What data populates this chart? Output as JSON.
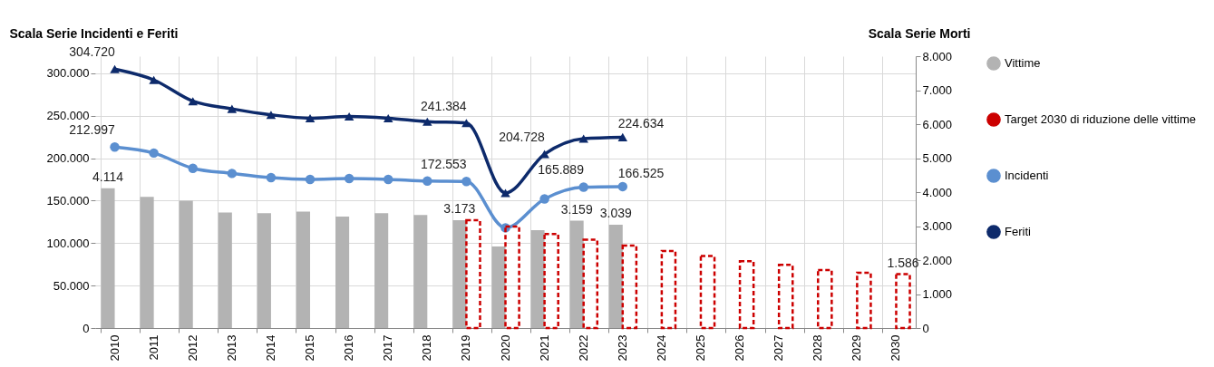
{
  "chart_data": {
    "type": "line",
    "ylabel": "Scala Serie Incidenti e Feriti",
    "y2label": "Scala Serie Morti",
    "categories": [
      "2010",
      "2011",
      "2012",
      "2013",
      "2014",
      "2015",
      "2016",
      "2017",
      "2018",
      "2019",
      "2020",
      "2021",
      "2022",
      "2023",
      "2024",
      "2025",
      "2026",
      "2027",
      "2028",
      "2029",
      "2030"
    ],
    "ylim": [
      0,
      320000
    ],
    "yticks": [
      {
        "value": 0,
        "label": "0"
      },
      {
        "value": 50000,
        "label": "50.000"
      },
      {
        "value": 100000,
        "label": "100.000"
      },
      {
        "value": 150000,
        "label": "150.000"
      },
      {
        "value": 200000,
        "label": "200.000"
      },
      {
        "value": 250000,
        "label": "250.000"
      },
      {
        "value": 300000,
        "label": "300.000"
      }
    ],
    "y2lim": [
      0,
      8000
    ],
    "y2ticks": [
      {
        "value": 0,
        "label": "0"
      },
      {
        "value": 1000,
        "label": "1.000"
      },
      {
        "value": 2000,
        "label": "2.000"
      },
      {
        "value": 3000,
        "label": "3.000"
      },
      {
        "value": 4000,
        "label": "4.000"
      },
      {
        "value": 5000,
        "label": "5.000"
      },
      {
        "value": 6000,
        "label": "6.000"
      },
      {
        "value": 7000,
        "label": "7.000"
      },
      {
        "value": 8000,
        "label": "8.000"
      }
    ],
    "grid": true,
    "legend": "right",
    "series": [
      {
        "name": "Vittime",
        "type": "bar",
        "axis": "y2",
        "color": "#b3b3b3",
        "values": [
          4114,
          3860,
          3750,
          3400,
          3380,
          3430,
          3280,
          3380,
          3330,
          3173,
          2400,
          2880,
          3159,
          3039,
          null,
          null,
          null,
          null,
          null,
          null,
          null
        ],
        "value_labels": [
          "4.114",
          null,
          null,
          null,
          null,
          null,
          null,
          null,
          null,
          "3.173",
          null,
          null,
          "3.159",
          "3.039",
          null,
          null,
          null,
          null,
          null,
          null,
          null
        ]
      },
      {
        "name": "Target 2030 di riduzione delle vittime",
        "type": "bar",
        "axis": "y2",
        "color": "#cc0000",
        "line_style": "dashed",
        "values": [
          null,
          null,
          null,
          null,
          null,
          null,
          null,
          null,
          null,
          3173,
          2990,
          2770,
          2600,
          2430,
          2270,
          2120,
          1970,
          1860,
          1710,
          1630,
          1586
        ],
        "value_labels": [
          null,
          null,
          null,
          null,
          null,
          null,
          null,
          null,
          null,
          null,
          null,
          null,
          null,
          null,
          null,
          null,
          null,
          null,
          null,
          null,
          "1.586"
        ]
      },
      {
        "name": "Incidenti",
        "color": "#5b8fd0",
        "marker": "circle",
        "values": [
          212997,
          206000,
          188000,
          182000,
          177000,
          175000,
          176000,
          175000,
          173000,
          172553,
          118000,
          152000,
          165889,
          166525,
          null,
          null,
          null,
          null,
          null,
          null,
          null
        ],
        "value_labels": [
          "212.997",
          null,
          null,
          null,
          null,
          null,
          null,
          null,
          null,
          "172.553",
          null,
          null,
          "165.889",
          "166.525",
          null,
          null,
          null,
          null,
          null,
          null,
          null
        ]
      },
      {
        "name": "Feriti",
        "color": "#0d2a6b",
        "marker": "triangle",
        "values": [
          304720,
          292000,
          267000,
          258000,
          251000,
          247000,
          249000,
          247000,
          243000,
          241384,
          159000,
          204728,
          223000,
          224634,
          null,
          null,
          null,
          null,
          null,
          null,
          null
        ],
        "value_labels": [
          "304.720",
          null,
          null,
          null,
          null,
          null,
          null,
          null,
          null,
          "241.384",
          null,
          "204.728",
          null,
          "224.634",
          null,
          null,
          null,
          null,
          null,
          null,
          null
        ]
      }
    ]
  }
}
